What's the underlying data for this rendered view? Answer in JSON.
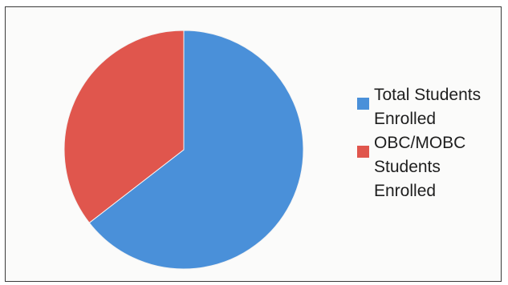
{
  "chart_data": {
    "type": "pie",
    "slices": [
      {
        "label": "Total Students Enrolled",
        "value": 64.5,
        "color": "#4a90d9"
      },
      {
        "label": "OBC/MOBC Students Enrolled",
        "value": 35.5,
        "color": "#e0564d"
      }
    ],
    "legend": {
      "position": "right",
      "entries": [
        "Total Students\nEnrolled",
        "OBC/MOBC\nStudents\nEnrolled"
      ]
    },
    "start_angle_deg": 0,
    "direction": "clockwise"
  }
}
